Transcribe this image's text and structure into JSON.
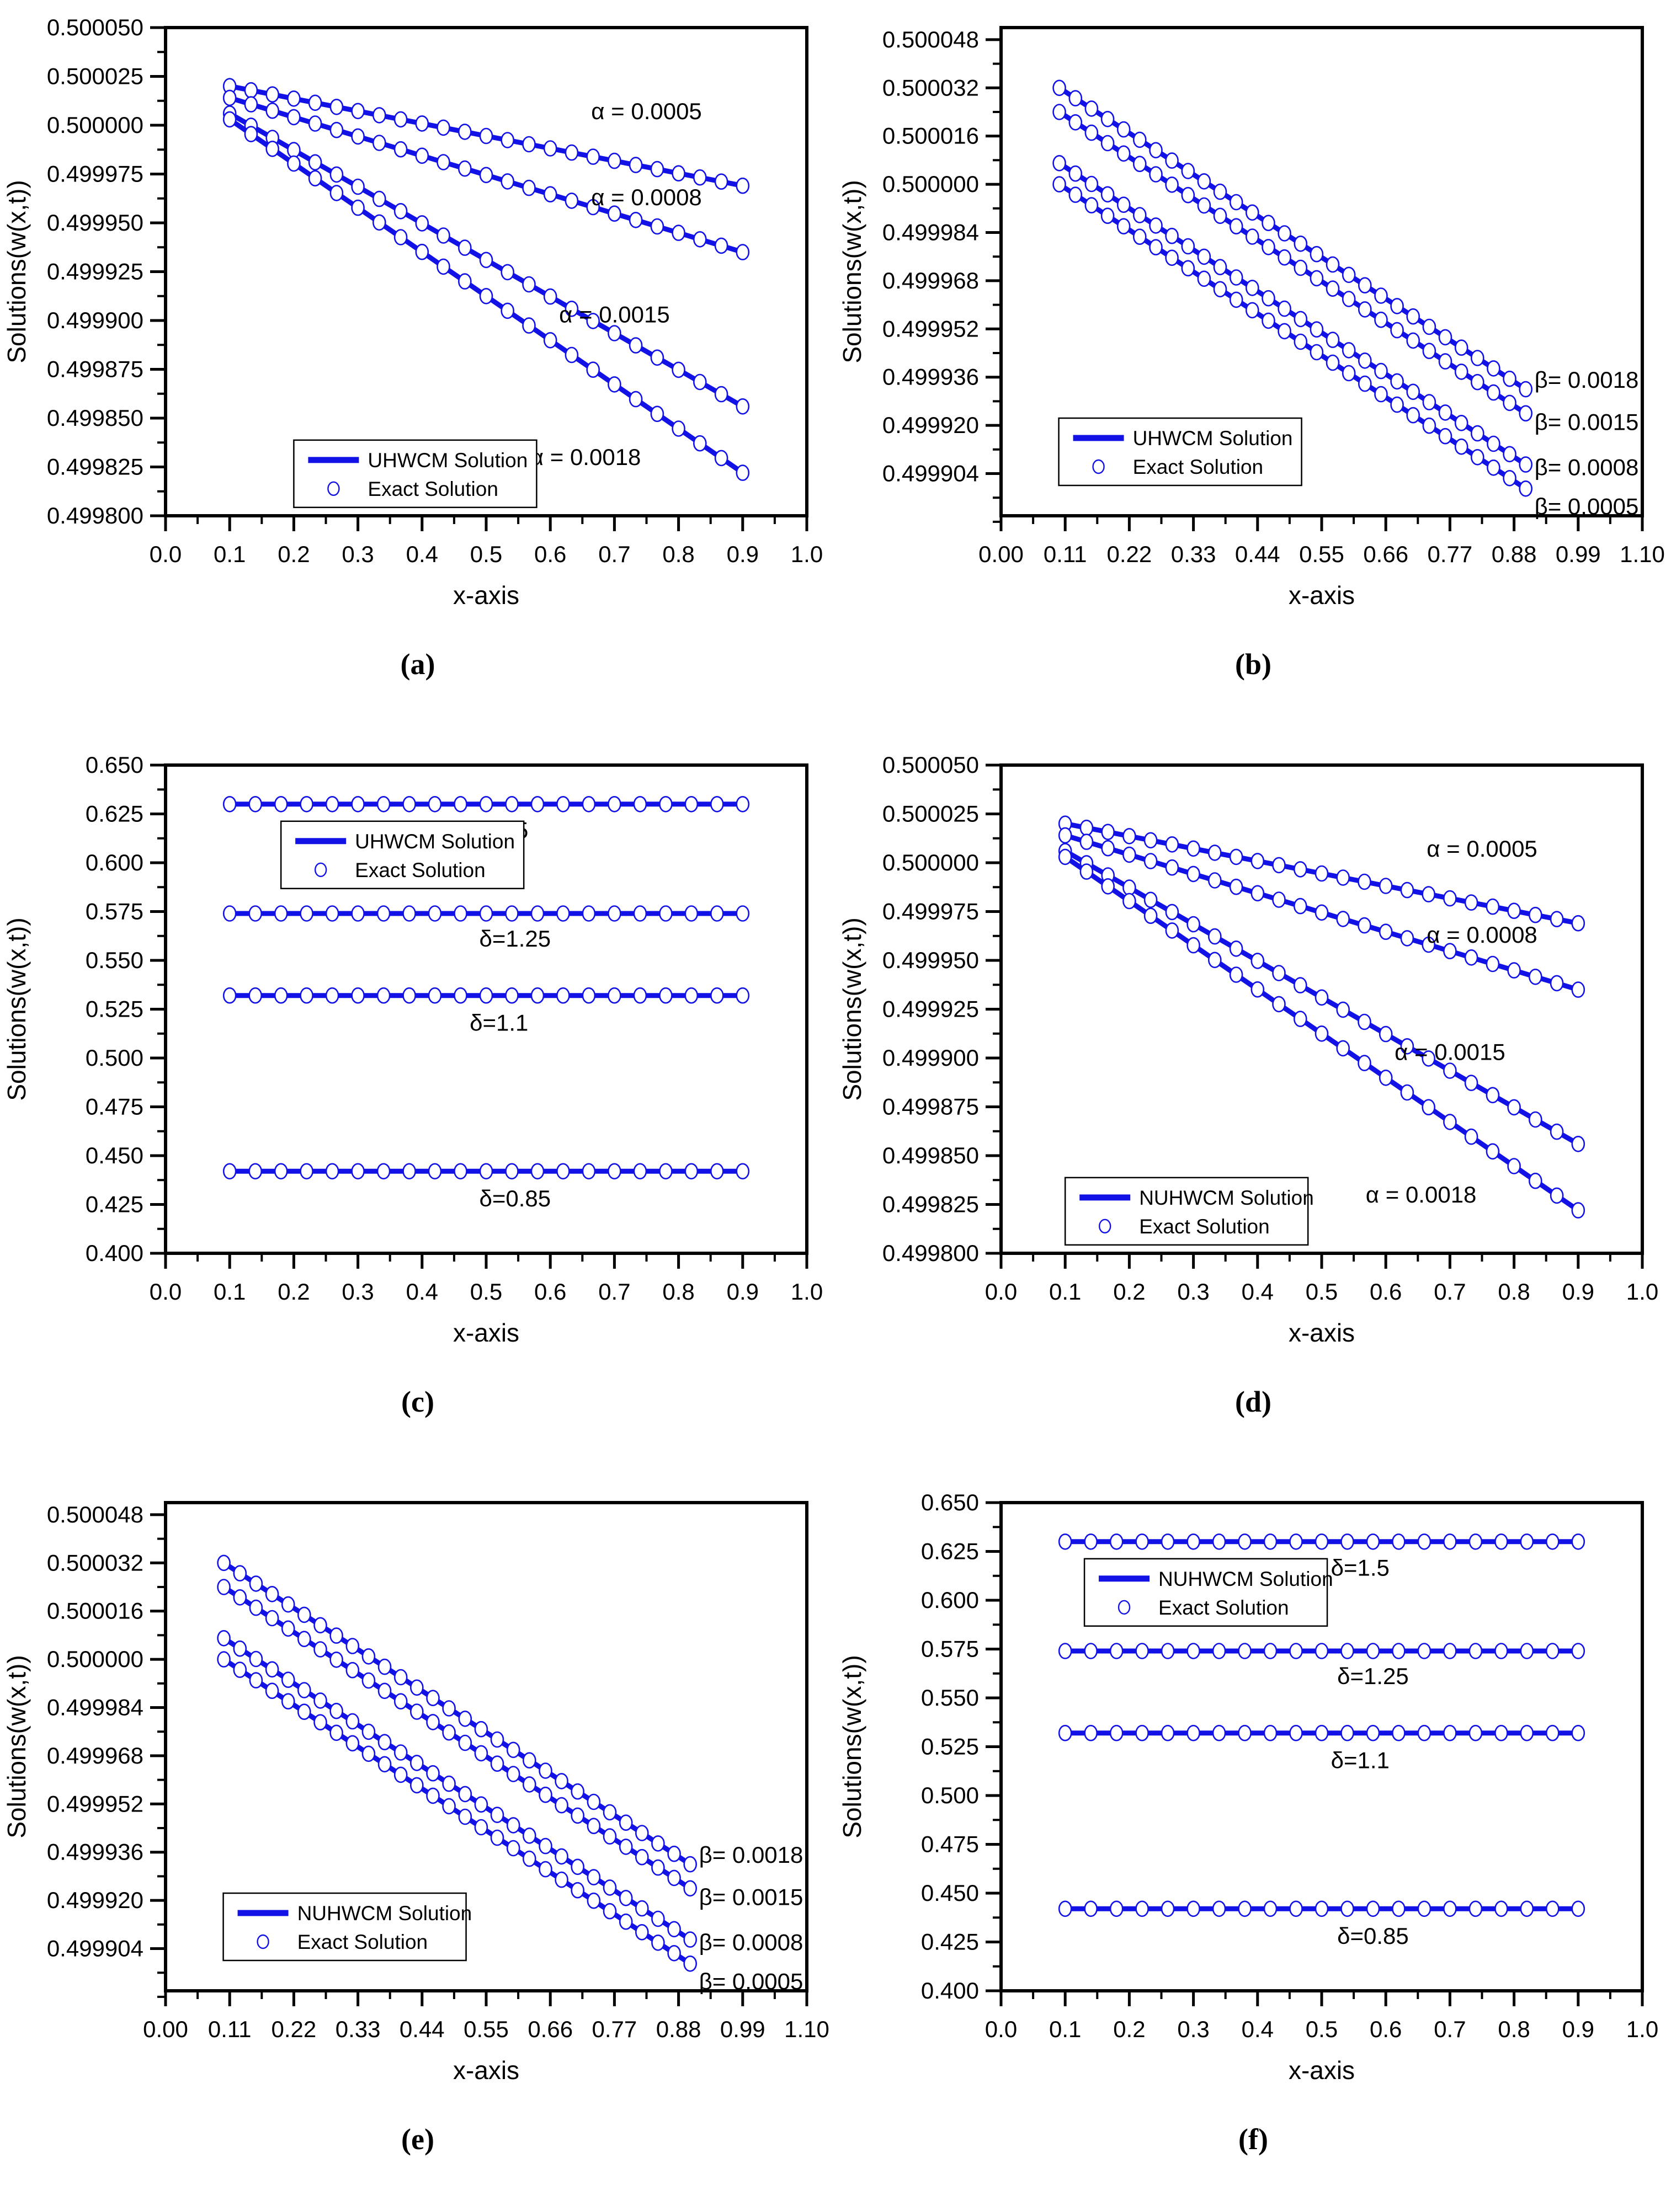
{
  "chart_data": {
    "type": "line",
    "grid": "off",
    "colors": {
      "line": "#1212e6",
      "marker_fill": "#ffffff",
      "axis": "#000000",
      "text": "#000000"
    },
    "marker_style": "open-circle",
    "panels": [
      {
        "id": "a",
        "caption": "(a)",
        "xlabel": "x-axis",
        "ylabel": "Solutions(w(x,t))",
        "x_axis": {
          "min": 0.0,
          "max": 1.0,
          "minor_step": 0.05,
          "tick_labels": [
            "0.0",
            "0.1",
            "0.2",
            "0.3",
            "0.4",
            "0.5",
            "0.6",
            "0.7",
            "0.8",
            "0.9",
            "1.0"
          ]
        },
        "y_axis": {
          "min": 0.4998,
          "max": 0.50005,
          "minor_step": 1.25e-05,
          "tick_labels": [
            "0.500050",
            "0.500025",
            "0.500000",
            "0.499975",
            "0.499950",
            "0.499925",
            "0.499900",
            "0.499875",
            "0.499850",
            "0.499825",
            "0.499800"
          ]
        },
        "legend": {
          "position": "lower-left",
          "pos": {
            "left": 0.2,
            "top": 0.845
          },
          "items": [
            {
              "sample": "line",
              "label": "UHWCM Solution"
            },
            {
              "sample": "circle",
              "label": "Exact Solution"
            }
          ]
        },
        "series": [
          {
            "label": "α = 0.0005",
            "shape": "linear",
            "x_start": 0.1,
            "x_end": 0.9,
            "n_points": 25,
            "y_start": 0.50002,
            "y_end": 0.499969,
            "label_pos": {
              "x": 0.75,
              "y": 0.500007,
              "anchor": "middle"
            }
          },
          {
            "label": "α = 0.0008",
            "shape": "linear",
            "x_start": 0.1,
            "x_end": 0.9,
            "n_points": 25,
            "y_start": 0.500014,
            "y_end": 0.499935,
            "label_pos": {
              "x": 0.75,
              "y": 0.499963,
              "anchor": "middle"
            }
          },
          {
            "label": "α = 0.0015",
            "shape": "linear",
            "x_start": 0.1,
            "x_end": 0.9,
            "n_points": 25,
            "y_start": 0.500006,
            "y_end": 0.499856,
            "label_pos": {
              "x": 0.7,
              "y": 0.499903,
              "anchor": "middle"
            }
          },
          {
            "label": "α = 0.0018",
            "shape": "linear",
            "x_start": 0.1,
            "x_end": 0.9,
            "n_points": 25,
            "y_start": 0.500003,
            "y_end": 0.499822,
            "label_pos": {
              "x": 0.655,
              "y": 0.49983,
              "anchor": "middle"
            }
          }
        ]
      },
      {
        "id": "b",
        "caption": "(b)",
        "xlabel": "x-axis",
        "ylabel": "Solutions(w(x,t))",
        "x_axis": {
          "min": 0.0,
          "max": 1.1,
          "minor_step": 0.055,
          "tick_labels": [
            "0.00",
            "0.11",
            "0.22",
            "0.33",
            "0.44",
            "0.55",
            "0.66",
            "0.77",
            "0.88",
            "0.99",
            "1.10"
          ]
        },
        "y_axis": {
          "min": 0.49989,
          "max": 0.500052,
          "minor_step": 8e-06,
          "tick_labels": [
            "0.500048",
            "0.500032",
            "0.500016",
            "0.500000",
            "0.499984",
            "0.499968",
            "0.499952",
            "0.499936",
            "0.499920",
            "0.499904"
          ]
        },
        "legend": {
          "position": "lower-left",
          "pos": {
            "left": 0.09,
            "top": 0.8
          },
          "items": [
            {
              "sample": "line",
              "label": "UHWCM Solution"
            },
            {
              "sample": "circle",
              "label": "Exact Solution"
            }
          ]
        },
        "series": [
          {
            "label": "β= 0.0018",
            "shape": "linear",
            "x_start": 0.1,
            "x_end": 0.9,
            "n_points": 30,
            "y_start": 0.500032,
            "y_end": 0.499932,
            "label_pos": {
              "x": 0.915,
              "y": 0.499935,
              "anchor": "start"
            }
          },
          {
            "label": "β= 0.0015",
            "shape": "linear",
            "x_start": 0.1,
            "x_end": 0.9,
            "n_points": 30,
            "y_start": 0.500024,
            "y_end": 0.499924,
            "label_pos": {
              "x": 0.915,
              "y": 0.499921,
              "anchor": "start"
            }
          },
          {
            "label": "β= 0.0008",
            "shape": "linear",
            "x_start": 0.1,
            "x_end": 0.9,
            "n_points": 30,
            "y_start": 0.500007,
            "y_end": 0.499907,
            "label_pos": {
              "x": 0.915,
              "y": 0.499906,
              "anchor": "start"
            }
          },
          {
            "label": "β= 0.0005",
            "shape": "linear",
            "x_start": 0.1,
            "x_end": 0.9,
            "n_points": 30,
            "y_start": 0.5,
            "y_end": 0.499899,
            "label_pos": {
              "x": 0.915,
              "y": 0.499893,
              "anchor": "start"
            }
          }
        ]
      },
      {
        "id": "c",
        "caption": "(c)",
        "xlabel": "x-axis",
        "ylabel": "Solutions(w(x,t))",
        "x_axis": {
          "min": 0.0,
          "max": 1.0,
          "minor_step": 0.05,
          "tick_labels": [
            "0.0",
            "0.1",
            "0.2",
            "0.3",
            "0.4",
            "0.5",
            "0.6",
            "0.7",
            "0.8",
            "0.9",
            "1.0"
          ]
        },
        "y_axis": {
          "min": 0.4,
          "max": 0.65,
          "minor_step": 0.0125,
          "tick_labels": [
            "0.650",
            "0.625",
            "0.600",
            "0.575",
            "0.550",
            "0.525",
            "0.500",
            "0.475",
            "0.450",
            "0.425",
            "0.400"
          ]
        },
        "legend": {
          "position": "upper-left",
          "pos": {
            "left": 0.18,
            "top": 0.115
          },
          "items": [
            {
              "sample": "line",
              "label": "UHWCM Solution"
            },
            {
              "sample": "circle",
              "label": "Exact Solution"
            }
          ]
        },
        "series": [
          {
            "label": "δ=1.5",
            "shape": "linear",
            "x_start": 0.1,
            "x_end": 0.9,
            "n_points": 21,
            "y_start": 0.63,
            "y_end": 0.63,
            "label_pos": {
              "x": 0.52,
              "y": 0.6165,
              "anchor": "middle"
            }
          },
          {
            "label": "δ=1.25",
            "shape": "linear",
            "x_start": 0.1,
            "x_end": 0.9,
            "n_points": 21,
            "y_start": 0.574,
            "y_end": 0.574,
            "label_pos": {
              "x": 0.545,
              "y": 0.561,
              "anchor": "middle"
            }
          },
          {
            "label": "δ=1.1",
            "shape": "linear",
            "x_start": 0.1,
            "x_end": 0.9,
            "n_points": 21,
            "y_start": 0.532,
            "y_end": 0.532,
            "label_pos": {
              "x": 0.52,
              "y": 0.518,
              "anchor": "middle"
            }
          },
          {
            "label": "δ=0.85",
            "shape": "linear",
            "x_start": 0.1,
            "x_end": 0.9,
            "n_points": 21,
            "y_start": 0.442,
            "y_end": 0.442,
            "label_pos": {
              "x": 0.545,
              "y": 0.428,
              "anchor": "middle"
            }
          }
        ]
      },
      {
        "id": "d",
        "caption": "(d)",
        "xlabel": "x-axis",
        "ylabel": "Solutions(w(x,t))",
        "x_axis": {
          "min": 0.0,
          "max": 1.0,
          "minor_step": 0.05,
          "tick_labels": [
            "0.0",
            "0.1",
            "0.2",
            "0.3",
            "0.4",
            "0.5",
            "0.6",
            "0.7",
            "0.8",
            "0.9",
            "1.0"
          ]
        },
        "y_axis": {
          "min": 0.4998,
          "max": 0.50005,
          "minor_step": 1.25e-05,
          "tick_labels": [
            "0.500050",
            "0.500025",
            "0.500000",
            "0.499975",
            "0.499950",
            "0.499925",
            "0.499900",
            "0.499875",
            "0.499850",
            "0.499825",
            "0.499800"
          ]
        },
        "legend": {
          "position": "lower-left",
          "pos": {
            "left": 0.1,
            "top": 0.845
          },
          "items": [
            {
              "sample": "line",
              "label": "NUHWCM Solution"
            },
            {
              "sample": "circle",
              "label": "Exact Solution"
            }
          ]
        },
        "series": [
          {
            "label": "α = 0.0005",
            "shape": "linear",
            "x_start": 0.1,
            "x_end": 0.9,
            "n_points": 25,
            "y_start": 0.50002,
            "y_end": 0.499969,
            "label_pos": {
              "x": 0.75,
              "y": 0.500007,
              "anchor": "middle"
            }
          },
          {
            "label": "α = 0.0008",
            "shape": "linear",
            "x_start": 0.1,
            "x_end": 0.9,
            "n_points": 25,
            "y_start": 0.500014,
            "y_end": 0.499935,
            "label_pos": {
              "x": 0.75,
              "y": 0.499963,
              "anchor": "middle"
            }
          },
          {
            "label": "α = 0.0015",
            "shape": "linear",
            "x_start": 0.1,
            "x_end": 0.9,
            "n_points": 25,
            "y_start": 0.500006,
            "y_end": 0.499856,
            "label_pos": {
              "x": 0.7,
              "y": 0.499903,
              "anchor": "middle"
            }
          },
          {
            "label": "α = 0.0018",
            "shape": "linear",
            "x_start": 0.1,
            "x_end": 0.9,
            "n_points": 25,
            "y_start": 0.500003,
            "y_end": 0.499822,
            "label_pos": {
              "x": 0.655,
              "y": 0.49983,
              "anchor": "middle"
            }
          }
        ]
      },
      {
        "id": "e",
        "caption": "(e)",
        "xlabel": "x-axis",
        "ylabel": "Solutions(w(x,t))",
        "x_axis": {
          "min": 0.0,
          "max": 1.1,
          "minor_step": 0.055,
          "tick_labels": [
            "0.00",
            "0.11",
            "0.22",
            "0.33",
            "0.44",
            "0.55",
            "0.66",
            "0.77",
            "0.88",
            "0.99",
            "1.10"
          ]
        },
        "y_axis": {
          "min": 0.49989,
          "max": 0.500052,
          "minor_step": 8e-06,
          "tick_labels": [
            "0.500048",
            "0.500032",
            "0.500016",
            "0.500000",
            "0.499984",
            "0.499968",
            "0.499952",
            "0.499936",
            "0.499920",
            "0.499904"
          ]
        },
        "legend": {
          "position": "lower-left",
          "pos": {
            "left": 0.09,
            "top": 0.8
          },
          "items": [
            {
              "sample": "line",
              "label": "NUHWCM Solution"
            },
            {
              "sample": "circle",
              "label": "Exact Solution"
            }
          ]
        },
        "series": [
          {
            "label": "β= 0.0018",
            "shape": "linear",
            "x_start": 0.1,
            "x_end": 0.9,
            "n_points": 30,
            "y_start": 0.500032,
            "y_end": 0.499932,
            "label_pos": {
              "x": 0.915,
              "y": 0.499935,
              "anchor": "start"
            }
          },
          {
            "label": "β= 0.0015",
            "shape": "linear",
            "x_start": 0.1,
            "x_end": 0.9,
            "n_points": 30,
            "y_start": 0.500024,
            "y_end": 0.499924,
            "label_pos": {
              "x": 0.915,
              "y": 0.499921,
              "anchor": "start"
            }
          },
          {
            "label": "β= 0.0008",
            "shape": "linear",
            "x_start": 0.1,
            "x_end": 0.9,
            "n_points": 30,
            "y_start": 0.500007,
            "y_end": 0.499907,
            "label_pos": {
              "x": 0.915,
              "y": 0.499906,
              "anchor": "start"
            }
          },
          {
            "label": "β= 0.0005",
            "shape": "linear",
            "x_start": 0.1,
            "x_end": 0.9,
            "n_points": 30,
            "y_start": 0.5,
            "y_end": 0.499899,
            "label_pos": {
              "x": 0.915,
              "y": 0.499893,
              "anchor": "start"
            }
          }
        ]
      },
      {
        "id": "f",
        "caption": "(f)",
        "xlabel": "x-axis",
        "ylabel": "Solutions(w(x,t))",
        "x_axis": {
          "min": 0.0,
          "max": 1.0,
          "minor_step": 0.05,
          "tick_labels": [
            "0.0",
            "0.1",
            "0.2",
            "0.3",
            "0.4",
            "0.5",
            "0.6",
            "0.7",
            "0.8",
            "0.9",
            "1.0"
          ]
        },
        "y_axis": {
          "min": 0.4,
          "max": 0.65,
          "minor_step": 0.0125,
          "tick_labels": [
            "0.650",
            "0.625",
            "0.600",
            "0.575",
            "0.550",
            "0.525",
            "0.500",
            "0.475",
            "0.450",
            "0.425",
            "0.400"
          ]
        },
        "legend": {
          "position": "upper-left",
          "pos": {
            "left": 0.13,
            "top": 0.115
          },
          "items": [
            {
              "sample": "line",
              "label": "NUHWCM Solution"
            },
            {
              "sample": "circle",
              "label": "Exact Solution"
            }
          ]
        },
        "series": [
          {
            "label": "δ=1.5",
            "shape": "linear",
            "x_start": 0.1,
            "x_end": 0.9,
            "n_points": 21,
            "y_start": 0.63,
            "y_end": 0.63,
            "label_pos": {
              "x": 0.56,
              "y": 0.6165,
              "anchor": "middle"
            }
          },
          {
            "label": "δ=1.25",
            "shape": "linear",
            "x_start": 0.1,
            "x_end": 0.9,
            "n_points": 21,
            "y_start": 0.574,
            "y_end": 0.574,
            "label_pos": {
              "x": 0.58,
              "y": 0.561,
              "anchor": "middle"
            }
          },
          {
            "label": "δ=1.1",
            "shape": "linear",
            "x_start": 0.1,
            "x_end": 0.9,
            "n_points": 21,
            "y_start": 0.532,
            "y_end": 0.532,
            "label_pos": {
              "x": 0.56,
              "y": 0.518,
              "anchor": "middle"
            }
          },
          {
            "label": "δ=0.85",
            "shape": "linear",
            "x_start": 0.1,
            "x_end": 0.9,
            "n_points": 21,
            "y_start": 0.442,
            "y_end": 0.442,
            "label_pos": {
              "x": 0.58,
              "y": 0.428,
              "anchor": "middle"
            }
          }
        ]
      }
    ]
  }
}
